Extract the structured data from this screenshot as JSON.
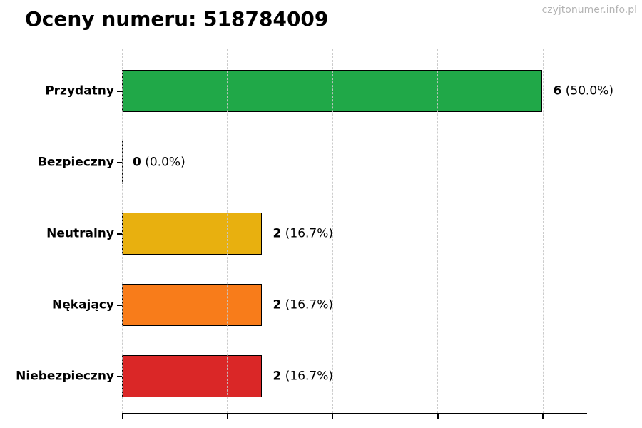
{
  "title": "Oceny numeru: 518784009",
  "watermark": "czyjtonumer.info.pl",
  "chart_data": {
    "type": "bar",
    "orientation": "horizontal",
    "title": "Oceny numeru: 518784009",
    "categories": [
      "Przydatny",
      "Bezpieczny",
      "Neutralny",
      "Nękający",
      "Niebezpieczny"
    ],
    "values": [
      6,
      0,
      2,
      2,
      2
    ],
    "value_labels": [
      "6",
      "0",
      "2",
      "2",
      "2"
    ],
    "percent_labels": [
      "(50.0%)",
      "(0.0%)",
      "(16.7%)",
      "(16.7%)",
      "(16.7%)"
    ],
    "bar_colors": [
      "#20a848",
      "#000000",
      "#e8b00f",
      "#f87c1a",
      "#da2727"
    ],
    "bar_edge_color": "#000000",
    "xlabel": "",
    "ylabel": "",
    "xlim": [
      0,
      6.6
    ],
    "grid_x": [
      0,
      1.5,
      3,
      4.5,
      6
    ],
    "grid": "x-axis dashed, drawn above bars",
    "grid_color": "#c6c6c6",
    "x_tick_labels_visible": false,
    "legend": "none"
  }
}
